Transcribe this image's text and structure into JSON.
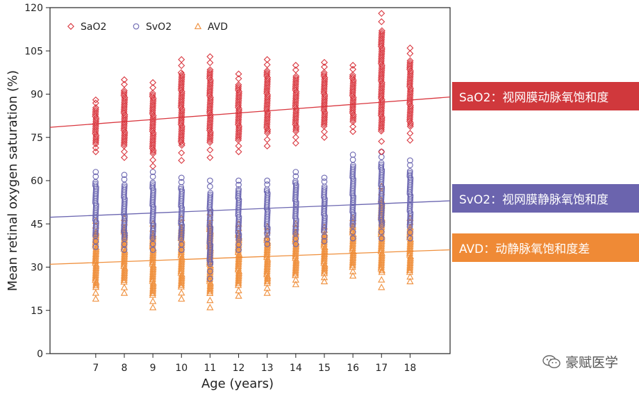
{
  "chart_data": {
    "type": "scatter",
    "xlabel": "Age (years)",
    "ylabel": "Mean retinal oxygen saturation (%)",
    "ylim": [
      0,
      120
    ],
    "xlim": [
      5.4,
      19.4
    ],
    "x_ticks": [
      7,
      8,
      9,
      10,
      11,
      12,
      13,
      14,
      15,
      16,
      17,
      18
    ],
    "y_ticks": [
      0,
      15,
      30,
      45,
      60,
      75,
      90,
      105,
      120
    ],
    "legend_position": "top-left",
    "series": [
      {
        "name": "SaO2",
        "marker": "diamond",
        "color": "#d9363e",
        "trend": {
          "x0": 5.4,
          "y0": 78.5,
          "x1": 19.4,
          "y1": 89.0
        },
        "points": [
          {
            "x": 7,
            "min": 70,
            "max": 88
          },
          {
            "x": 8,
            "min": 68,
            "max": 95
          },
          {
            "x": 9,
            "min": 65,
            "max": 94
          },
          {
            "x": 10,
            "min": 67,
            "max": 102
          },
          {
            "x": 11,
            "min": 68,
            "max": 103
          },
          {
            "x": 12,
            "min": 70,
            "max": 97
          },
          {
            "x": 13,
            "min": 72,
            "max": 102
          },
          {
            "x": 14,
            "min": 73,
            "max": 100
          },
          {
            "x": 15,
            "min": 75,
            "max": 101
          },
          {
            "x": 16,
            "min": 77,
            "max": 100
          },
          {
            "x": 17,
            "min": 70,
            "max": 118
          },
          {
            "x": 18,
            "min": 74,
            "max": 106
          }
        ]
      },
      {
        "name": "SvO2",
        "marker": "circle",
        "color": "#6a65b0",
        "trend": {
          "x0": 5.4,
          "y0": 47.3,
          "x1": 19.4,
          "y1": 53.0
        },
        "points": [
          {
            "x": 7,
            "min": 37,
            "max": 63
          },
          {
            "x": 8,
            "min": 36,
            "max": 62
          },
          {
            "x": 9,
            "min": 36,
            "max": 63
          },
          {
            "x": 10,
            "min": 36,
            "max": 61
          },
          {
            "x": 11,
            "min": 26,
            "max": 60
          },
          {
            "x": 12,
            "min": 36,
            "max": 60
          },
          {
            "x": 13,
            "min": 38,
            "max": 60
          },
          {
            "x": 14,
            "min": 38,
            "max": 63
          },
          {
            "x": 15,
            "min": 39,
            "max": 61
          },
          {
            "x": 16,
            "min": 40,
            "max": 69
          },
          {
            "x": 17,
            "min": 40,
            "max": 70
          },
          {
            "x": 18,
            "min": 40,
            "max": 67
          }
        ]
      },
      {
        "name": "AVD",
        "marker": "triangle",
        "color": "#ef8e3a",
        "trend": {
          "x0": 5.4,
          "y0": 31.0,
          "x1": 19.4,
          "y1": 36.0
        },
        "points": [
          {
            "x": 7,
            "min": 19,
            "max": 46
          },
          {
            "x": 8,
            "min": 21,
            "max": 47
          },
          {
            "x": 9,
            "min": 16,
            "max": 45
          },
          {
            "x": 10,
            "min": 19,
            "max": 47
          },
          {
            "x": 11,
            "min": 16,
            "max": 49
          },
          {
            "x": 12,
            "min": 20,
            "max": 45
          },
          {
            "x": 13,
            "min": 21,
            "max": 44
          },
          {
            "x": 14,
            "min": 24,
            "max": 45
          },
          {
            "x": 15,
            "min": 25,
            "max": 44
          },
          {
            "x": 16,
            "min": 27,
            "max": 47
          },
          {
            "x": 17,
            "min": 23,
            "max": 58
          },
          {
            "x": 18,
            "min": 25,
            "max": 47
          }
        ]
      }
    ]
  },
  "annotations": [
    {
      "text": "SaO2：视网膜动脉氧饱和度",
      "color": "#d0383c"
    },
    {
      "text": "SvO2：视网膜静脉氧饱和度",
      "color": "#6b64ae"
    },
    {
      "text": "AVD：动静脉氧饱和度差",
      "color": "#ef8a36"
    }
  ],
  "watermark": {
    "text": "豪赋医学",
    "icon": "wechat-icon"
  }
}
